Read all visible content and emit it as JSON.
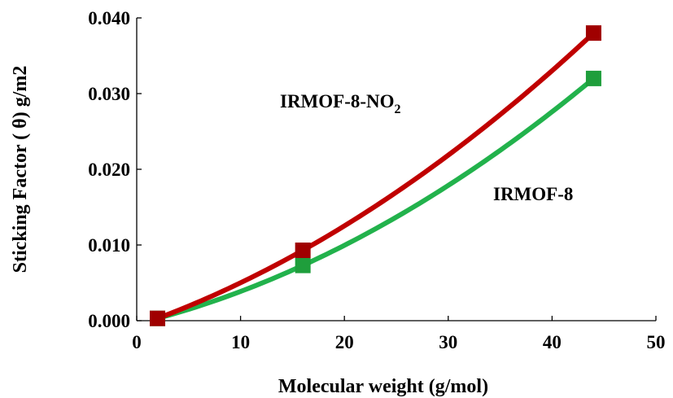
{
  "chart_data": {
    "type": "scatter",
    "xlabel": "Molecular weight (g/mol)",
    "ylabel": "Sticking Factor ( θ) g/m2",
    "xlim": [
      0,
      50
    ],
    "ylim": [
      0,
      0.04
    ],
    "x_ticks": [
      "0",
      "10",
      "20",
      "30",
      "40",
      "50"
    ],
    "y_ticks": [
      "0.000",
      "0.010",
      "0.020",
      "0.030",
      "0.040"
    ],
    "grid": false,
    "series": [
      {
        "label": "IRMOF-8",
        "color": "#22b24c",
        "marker_color": "#1f9e3c",
        "x": [
          2,
          16,
          44
        ],
        "y": [
          0.0003,
          0.0073,
          0.032
        ]
      },
      {
        "label": "IRMOF-8-NO2",
        "color": "#c00000",
        "marker_color": "#a00000",
        "x": [
          2,
          16,
          44
        ],
        "y": [
          0.0003,
          0.0093,
          0.038
        ]
      }
    ],
    "annotations": {
      "no2_main": "IRMOF-8-NO",
      "no2_sub": "2",
      "irmof8": "IRMOF-8"
    }
  }
}
